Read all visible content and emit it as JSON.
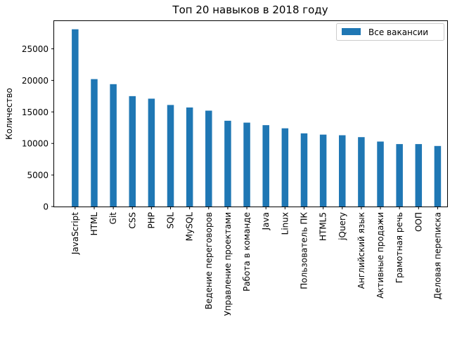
{
  "chart_data": {
    "type": "bar",
    "title": "Топ 20 навыков в 2018 году",
    "xlabel": "",
    "ylabel": "Количество",
    "ylim": [
      0,
      29400
    ],
    "yticks": [
      0,
      5000,
      10000,
      15000,
      20000,
      25000
    ],
    "grid": false,
    "legend_position": "top-right",
    "categories": [
      "JavaScript",
      "HTML",
      "Git",
      "CSS",
      "PHP",
      "SQL",
      "MySQL",
      "Ведение переговоров",
      "Управление проектами",
      "Работа в команде",
      "Java",
      "Linux",
      "Пользователь ПК",
      "HTML5",
      "jQuery",
      "Английский язык",
      "Активные продажи",
      "Грамотная речь",
      "ООП",
      "Деловая переписка"
    ],
    "series": [
      {
        "name": "Все вакансии",
        "color": "#1f77b4",
        "values": [
          28100,
          20200,
          19400,
          17500,
          17100,
          16100,
          15700,
          15200,
          13600,
          13300,
          12900,
          12400,
          11600,
          11400,
          11300,
          11000,
          10300,
          9900,
          9900,
          9600
        ]
      }
    ]
  }
}
